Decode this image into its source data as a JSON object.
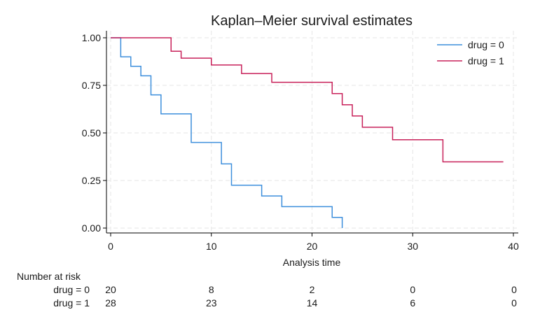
{
  "chart_data": {
    "type": "line",
    "title": "Kaplan–Meier survival estimates",
    "xlabel": "Analysis time",
    "ylabel": "",
    "xlim": [
      0,
      40
    ],
    "ylim": [
      0,
      1
    ],
    "x_ticks": [
      0,
      10,
      20,
      30,
      40
    ],
    "x_tick_labels": [
      "0",
      "10",
      "20",
      "30",
      "40"
    ],
    "y_ticks": [
      0,
      0.25,
      0.5,
      0.75,
      1.0
    ],
    "y_tick_labels": [
      "0.00",
      "0.25",
      "0.50",
      "0.75",
      "1.00"
    ],
    "grid": true,
    "legend_position": "top-right",
    "series": [
      {
        "name": "drug = 0",
        "color": "#3d8fdc",
        "step": true,
        "x": [
          0,
          1,
          2,
          3,
          4,
          5,
          8,
          11,
          12,
          15,
          17,
          22,
          23
        ],
        "y": [
          1.0,
          0.9,
          0.85,
          0.8,
          0.7,
          0.6,
          0.45,
          0.3375,
          0.225,
          0.16875,
          0.1125,
          0.05625,
          0.0
        ]
      },
      {
        "name": "drug = 1",
        "color": "#c8215a",
        "step": true,
        "x": [
          0,
          6,
          7,
          10,
          13,
          16,
          22,
          23,
          24,
          25,
          28,
          33,
          39
        ],
        "y": [
          1.0,
          0.929,
          0.893,
          0.857,
          0.812,
          0.766,
          0.707,
          0.648,
          0.589,
          0.53,
          0.464,
          0.348,
          0.348
        ]
      }
    ],
    "number_at_risk": {
      "heading": "Number at risk",
      "times": [
        0,
        10,
        20,
        30,
        40
      ],
      "rows": [
        {
          "label": "drug = 0",
          "counts": [
            "20",
            "8",
            "2",
            "0",
            "0"
          ]
        },
        {
          "label": "drug = 1",
          "counts": [
            "28",
            "23",
            "14",
            "6",
            "0"
          ]
        }
      ]
    }
  }
}
